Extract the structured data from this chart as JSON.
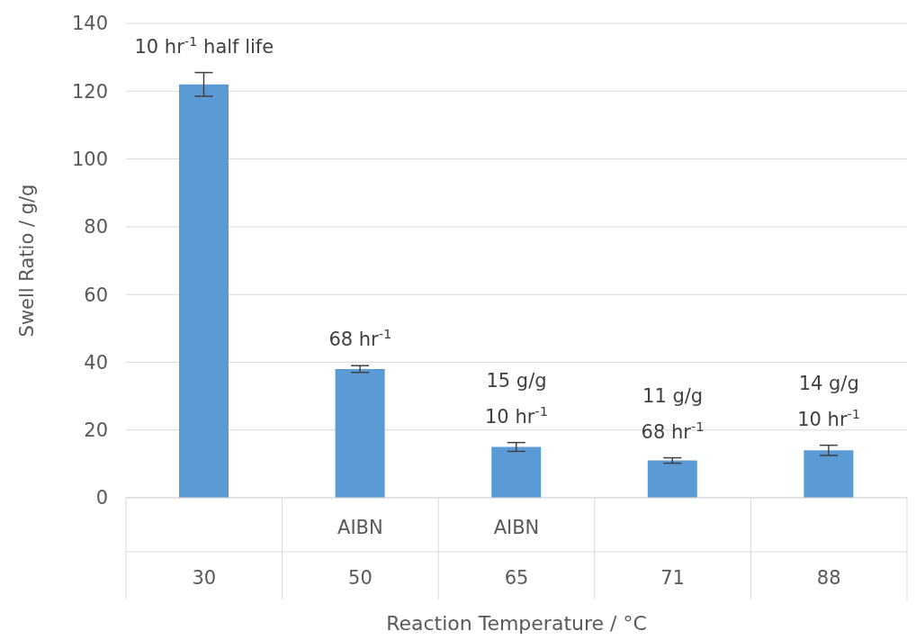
{
  "chart_data": {
    "type": "bar",
    "xlabel": "Reaction Temperature / °C",
    "ylabel": "Swell Ratio / g/g",
    "categories": [
      "30",
      "AIBN\n50",
      "AIBN\n65",
      "71",
      "88"
    ],
    "values": [
      122,
      38,
      15,
      11,
      14
    ],
    "value_labels": [
      null,
      null,
      "15 g/g",
      "11 g/g",
      "14 g/g"
    ],
    "errors": [
      3.5,
      1,
      1.3,
      0.8,
      1.5
    ],
    "color": "#5b9bd5",
    "ylim": [
      0,
      140
    ],
    "yticks": [
      0,
      20,
      40,
      60,
      80,
      100,
      120,
      140
    ],
    "grid": "y",
    "annotations": [
      "10 hr$^{-1}$ half life",
      "68 hr$^{-1}$",
      "10 hr$^{-1}$",
      "68 hr$^{-1}$",
      "10 hr$^{-1}$"
    ]
  }
}
